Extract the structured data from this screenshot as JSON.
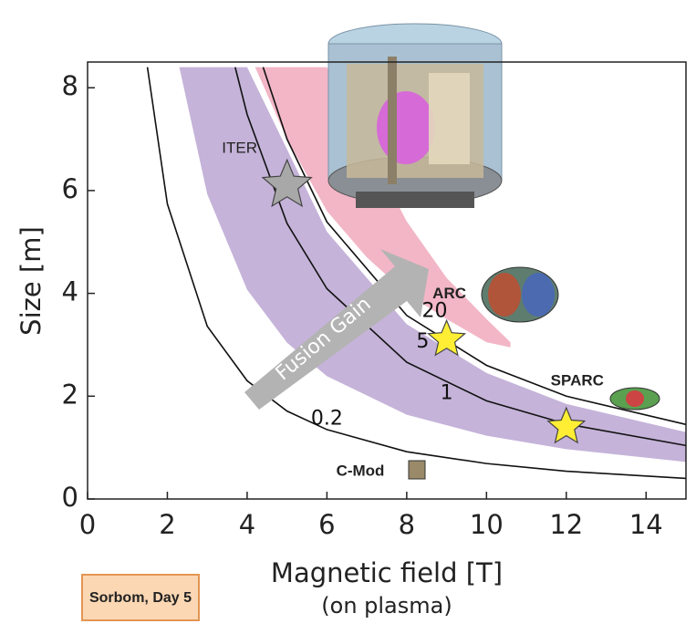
{
  "chart_data": {
    "type": "line",
    "x_label": "Magnetic field [T]",
    "x_sublabel": "(on plasma)",
    "y_label": "Size [m]",
    "xlim": [
      0,
      15
    ],
    "ylim": [
      0,
      8.5
    ],
    "xticks": [
      0,
      2,
      4,
      6,
      8,
      10,
      12,
      14
    ],
    "yticks": [
      0,
      2,
      4,
      6,
      8
    ],
    "series": [
      {
        "name": "0.2",
        "color": "#111111",
        "x": [
          1.5,
          2,
          3,
          4,
          5,
          6,
          8,
          10,
          12,
          15
        ],
        "values": [
          8.4,
          5.74,
          3.36,
          2.3,
          1.71,
          1.35,
          0.92,
          0.69,
          0.54,
          0.4
        ]
      },
      {
        "name": "1",
        "color": "#111111",
        "x": [
          3.7,
          4,
          5,
          6,
          8,
          10,
          12,
          15
        ],
        "values": [
          8.4,
          7.48,
          5.36,
          4.09,
          2.66,
          1.91,
          1.46,
          1.04
        ]
      },
      {
        "name": "5",
        "color": "#111111",
        "x": [
          4.4,
          5,
          6,
          8,
          10,
          12,
          15
        ],
        "values": [
          8.4,
          7.0,
          5.39,
          3.57,
          2.6,
          2.0,
          1.45
        ]
      }
    ],
    "bands": [
      {
        "color": "#c5b3d9",
        "x": [
          2.3,
          3,
          4,
          5,
          6,
          8,
          10,
          12,
          15
        ],
        "lower": [
          8.4,
          5.93,
          4.07,
          3.04,
          2.39,
          1.64,
          1.23,
          0.97,
          0.72
        ],
        "upper": [
          8.4,
          8.4,
          8.4,
          6.8,
          5.2,
          3.4,
          2.45,
          1.85,
          1.3
        ]
      },
      {
        "color": "#f2b6c6",
        "x": [
          4.2,
          5,
          6,
          7,
          8,
          9,
          10,
          10.6
        ],
        "lower": [
          8.4,
          7.0,
          5.6,
          4.7,
          4.0,
          3.5,
          3.05,
          2.95
        ],
        "upper": [
          8.4,
          8.4,
          8.4,
          6.9,
          5.4,
          4.3,
          3.5,
          3.05
        ]
      }
    ],
    "points": [
      {
        "name": "ITER",
        "x": 5,
        "y": 6.1,
        "color": "#a8a8a8"
      },
      {
        "name": "ARC",
        "x": 9,
        "y": 3.1,
        "color": "#ffee33"
      },
      {
        "name": "SPARC",
        "x": 12,
        "y": 1.4,
        "color": "#ffee33"
      }
    ],
    "device_labels": [
      "C-Mod"
    ],
    "annotations": [
      "20"
    ],
    "arrow_label": "Fusion Gain",
    "credit": "Sorbom, Day 5"
  }
}
